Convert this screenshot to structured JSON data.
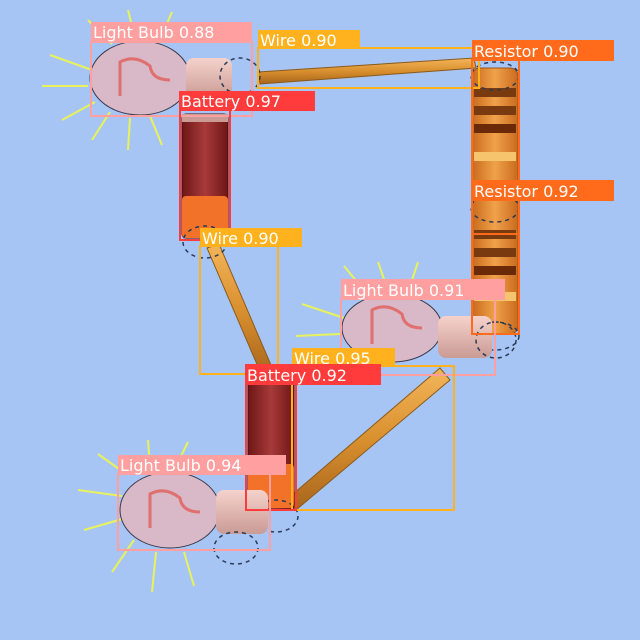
{
  "detections": [
    {
      "label": "Light Bulb",
      "score": "0.88",
      "color": "#ff9f9f"
    },
    {
      "label": "Wire",
      "score": "0.90",
      "color": "#ffb21d"
    },
    {
      "label": "Resistor",
      "score": "0.90",
      "color": "#ff6b1a"
    },
    {
      "label": "Battery",
      "score": "0.97",
      "color": "#ff3b3b"
    },
    {
      "label": "Resistor",
      "score": "0.92",
      "color": "#ff6b1a"
    },
    {
      "label": "Wire",
      "score": "0.90",
      "color": "#ffb21d"
    },
    {
      "label": "Light Bulb",
      "score": "0.91",
      "color": "#ff9f9f"
    },
    {
      "label": "Wire",
      "score": "0.95",
      "color": "#ffb21d"
    },
    {
      "label": "Battery",
      "score": "0.92",
      "color": "#ff3b3b"
    },
    {
      "label": "Light Bulb",
      "score": "0.94",
      "color": "#ff9f9f"
    }
  ]
}
